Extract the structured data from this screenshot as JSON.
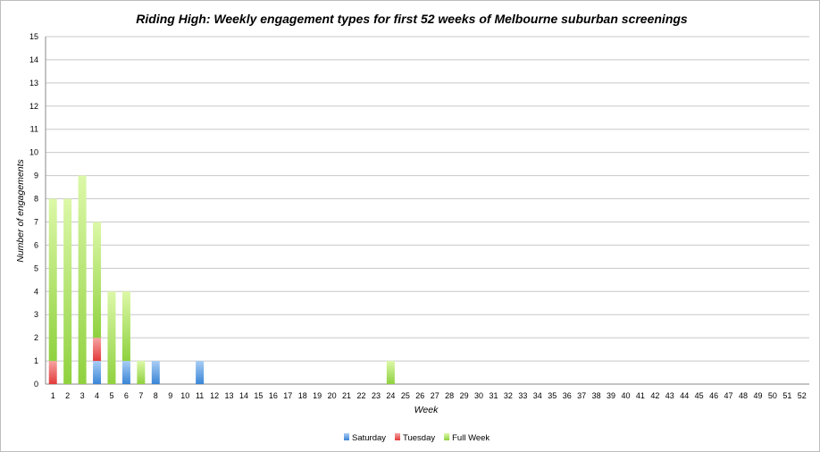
{
  "chart_data": {
    "type": "bar",
    "stacked": true,
    "title": "Riding High: Weekly engagement types for first 52 weeks of Melbourne suburban screenings",
    "xlabel": "Week",
    "ylabel": "Number of engagements",
    "ylim": [
      0,
      15
    ],
    "grid": true,
    "legend": "bottom",
    "categories": [
      "1",
      "2",
      "3",
      "4",
      "5",
      "6",
      "7",
      "8",
      "9",
      "10",
      "11",
      "12",
      "13",
      "14",
      "15",
      "16",
      "17",
      "18",
      "19",
      "20",
      "21",
      "22",
      "23",
      "24",
      "25",
      "26",
      "27",
      "28",
      "29",
      "30",
      "31",
      "32",
      "33",
      "34",
      "35",
      "36",
      "37",
      "38",
      "39",
      "40",
      "41",
      "42",
      "43",
      "44",
      "45",
      "46",
      "47",
      "48",
      "49",
      "50",
      "51",
      "52"
    ],
    "series": [
      {
        "name": "Saturday",
        "color": "#4a90d9",
        "values": [
          0,
          0,
          0,
          1,
          0,
          1,
          0,
          1,
          0,
          0,
          1,
          0,
          0,
          0,
          0,
          0,
          0,
          0,
          0,
          0,
          0,
          0,
          0,
          0,
          0,
          0,
          0,
          0,
          0,
          0,
          0,
          0,
          0,
          0,
          0,
          0,
          0,
          0,
          0,
          0,
          0,
          0,
          0,
          0,
          0,
          0,
          0,
          0,
          0,
          0,
          0,
          0
        ]
      },
      {
        "name": "Tuesday",
        "color": "#e84c4c",
        "values": [
          1,
          0,
          0,
          1,
          0,
          0,
          0,
          0,
          0,
          0,
          0,
          0,
          0,
          0,
          0,
          0,
          0,
          0,
          0,
          0,
          0,
          0,
          0,
          0,
          0,
          0,
          0,
          0,
          0,
          0,
          0,
          0,
          0,
          0,
          0,
          0,
          0,
          0,
          0,
          0,
          0,
          0,
          0,
          0,
          0,
          0,
          0,
          0,
          0,
          0,
          0,
          0
        ]
      },
      {
        "name": "Full Week",
        "color": "#8fd13f",
        "values": [
          7,
          8,
          9,
          5,
          4,
          3,
          1,
          0,
          0,
          0,
          0,
          0,
          0,
          0,
          0,
          0,
          0,
          0,
          0,
          0,
          0,
          0,
          0,
          1,
          0,
          0,
          0,
          0,
          0,
          0,
          0,
          0,
          0,
          0,
          0,
          0,
          0,
          0,
          0,
          0,
          0,
          0,
          0,
          0,
          0,
          0,
          0,
          0,
          0,
          0,
          0,
          0
        ]
      }
    ]
  }
}
